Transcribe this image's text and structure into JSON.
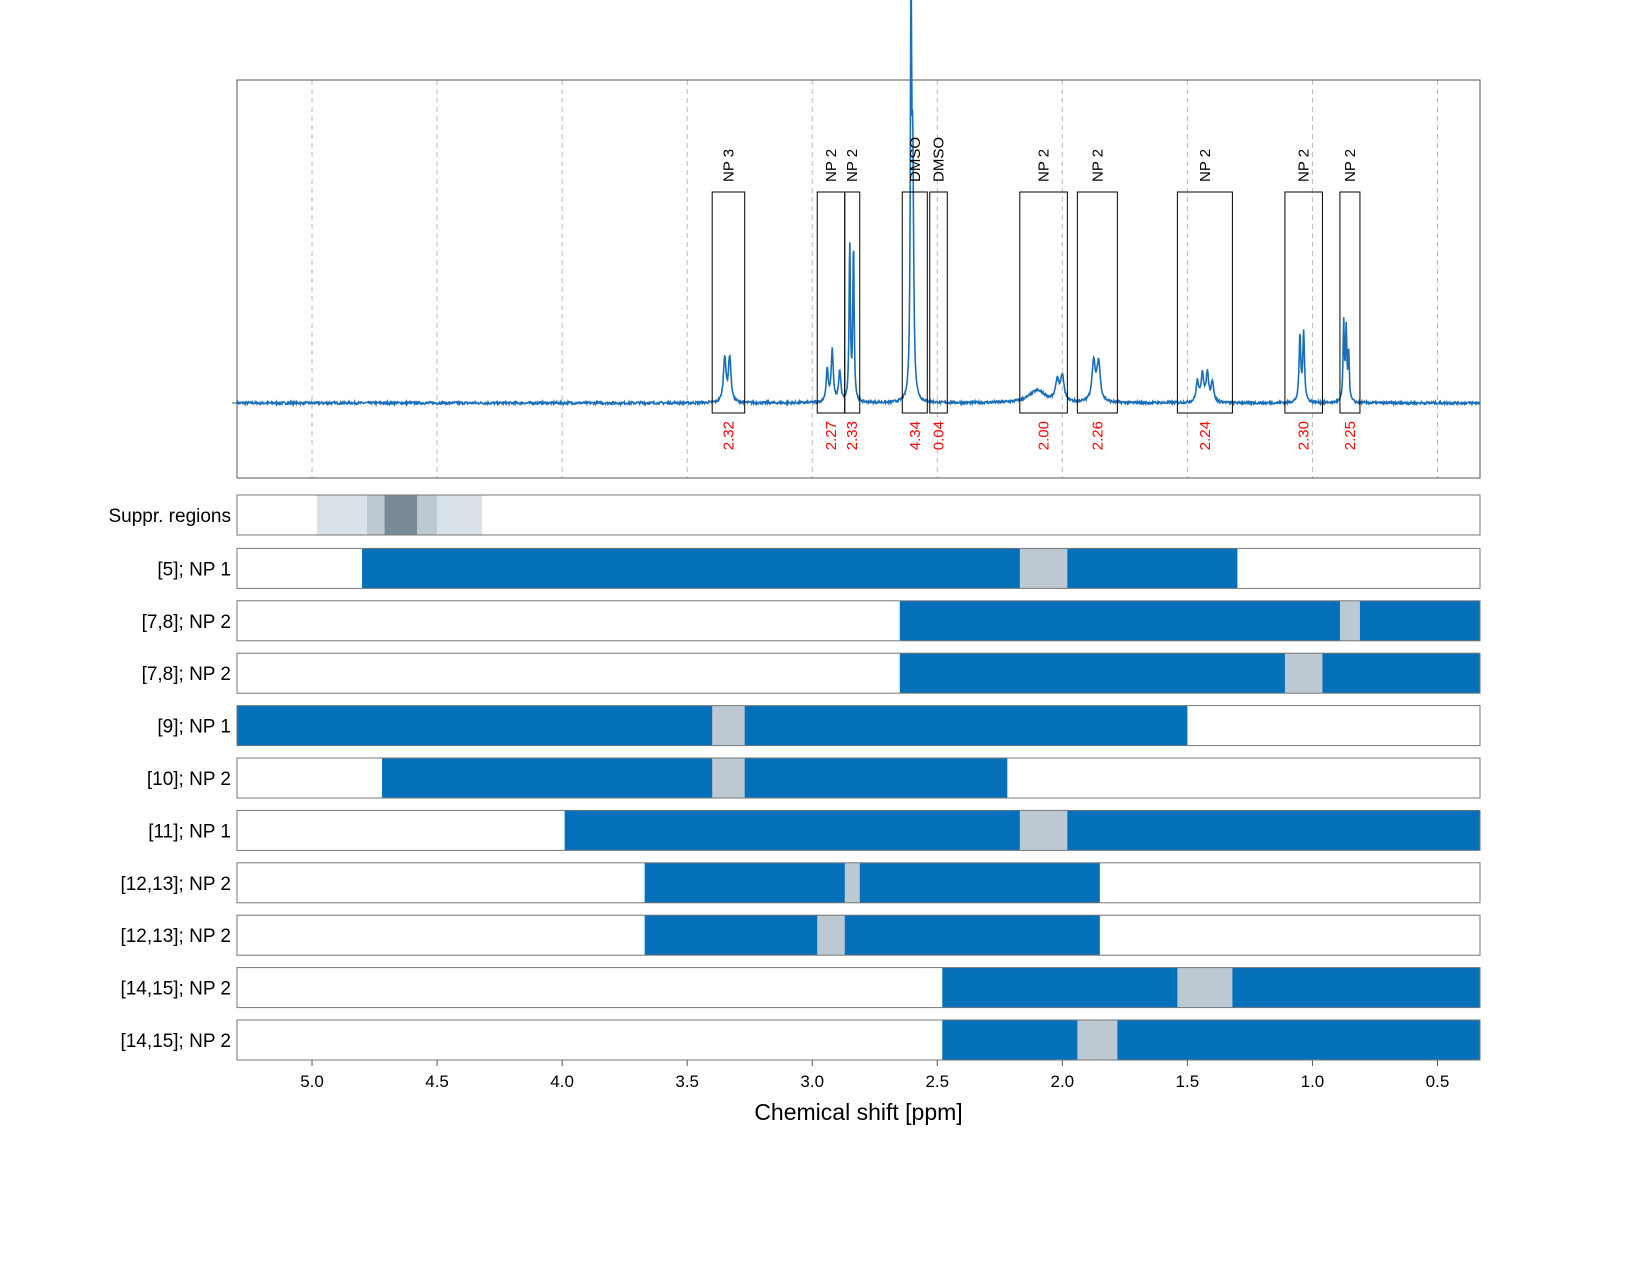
{
  "chart_data": {
    "type": "nmr-spectrum-with-alignment",
    "xlabel": "Chemical shift [ppm]",
    "xlim": [
      5.3,
      0.33
    ],
    "xticks": [
      5.0,
      4.5,
      4.0,
      3.5,
      3.0,
      2.5,
      2.0,
      1.5,
      1.0,
      0.5
    ],
    "xtick_labels": [
      "5.0",
      "4.5",
      "4.0",
      "3.5",
      "3.0",
      "2.5",
      "2.0",
      "1.5",
      "1.0",
      "0.5"
    ],
    "colors": {
      "spectrum": "#1a6fb8",
      "bar": "#0470ba",
      "overlap": "#bcc9d2",
      "integral_text": "#ff0000",
      "grid": "#bbbbbb"
    },
    "spectrum_peaks": [
      {
        "ppm": 3.35,
        "height": 0.11,
        "width": 0.006
      },
      {
        "ppm": 3.33,
        "height": 0.11,
        "width": 0.006
      },
      {
        "ppm": 2.94,
        "height": 0.08,
        "width": 0.005
      },
      {
        "ppm": 2.92,
        "height": 0.125,
        "width": 0.005
      },
      {
        "ppm": 2.89,
        "height": 0.075,
        "width": 0.005
      },
      {
        "ppm": 2.85,
        "height": 0.39,
        "width": 0.003
      },
      {
        "ppm": 2.835,
        "height": 0.39,
        "width": 0.003
      },
      {
        "ppm": 2.605,
        "height": 0.98,
        "width": 0.003
      },
      {
        "ppm": 2.598,
        "height": 0.55,
        "width": 0.004
      },
      {
        "ppm": 2.1,
        "height": 0.03,
        "width": 0.04
      },
      {
        "ppm": 2.02,
        "height": 0.05,
        "width": 0.008
      },
      {
        "ppm": 2.0,
        "height": 0.06,
        "width": 0.008
      },
      {
        "ppm": 1.875,
        "height": 0.095,
        "width": 0.008
      },
      {
        "ppm": 1.855,
        "height": 0.095,
        "width": 0.008
      },
      {
        "ppm": 1.46,
        "height": 0.05,
        "width": 0.006
      },
      {
        "ppm": 1.44,
        "height": 0.07,
        "width": 0.006
      },
      {
        "ppm": 1.42,
        "height": 0.07,
        "width": 0.006
      },
      {
        "ppm": 1.4,
        "height": 0.05,
        "width": 0.006
      },
      {
        "ppm": 1.05,
        "height": 0.16,
        "width": 0.004
      },
      {
        "ppm": 1.035,
        "height": 0.17,
        "width": 0.004
      },
      {
        "ppm": 0.875,
        "height": 0.19,
        "width": 0.003
      },
      {
        "ppm": 0.865,
        "height": 0.17,
        "width": 0.003
      },
      {
        "ppm": 0.855,
        "height": 0.12,
        "width": 0.003
      }
    ],
    "peak_boxes": [
      {
        "label": "NP 3",
        "integral": "2.32",
        "from": 3.4,
        "to": 3.27
      },
      {
        "label": "NP 2",
        "integral": "2.27",
        "from": 2.98,
        "to": 2.87
      },
      {
        "label": "NP 2",
        "integral": "2.33",
        "from": 2.87,
        "to": 2.81
      },
      {
        "label": "DMSO",
        "integral": "4.34",
        "from": 2.64,
        "to": 2.54
      },
      {
        "label": "DMSO",
        "integral": "0.04",
        "from": 2.53,
        "to": 2.46
      },
      {
        "label": "NP 2",
        "integral": "2.00",
        "from": 2.17,
        "to": 1.98
      },
      {
        "label": "NP 2",
        "integral": "2.26",
        "from": 1.94,
        "to": 1.78
      },
      {
        "label": "NP 2",
        "integral": "2.24",
        "from": 1.54,
        "to": 1.32
      },
      {
        "label": "NP 2",
        "integral": "2.30",
        "from": 1.11,
        "to": 0.96
      },
      {
        "label": "NP 2",
        "integral": "2.25",
        "from": 0.89,
        "to": 0.81
      }
    ],
    "suppressed_regions": {
      "label": "Suppr. regions",
      "bands": [
        {
          "from": 4.98,
          "to": 4.32,
          "color": "#d9e2e9"
        },
        {
          "from": 4.78,
          "to": 4.5,
          "color": "#bcc9d2"
        },
        {
          "from": 4.71,
          "to": 4.58,
          "color": "#7a8b98"
        }
      ]
    },
    "rows": [
      {
        "label": "[5]; NP 1",
        "bar": [
          4.8,
          1.3
        ],
        "overlap": [
          2.17,
          1.98
        ]
      },
      {
        "label": "[7,8]; NP 2",
        "bar": [
          2.65,
          0.33
        ],
        "overlap": [
          0.89,
          0.81
        ]
      },
      {
        "label": "[7,8]; NP 2",
        "bar": [
          2.65,
          0.33
        ],
        "overlap": [
          1.11,
          0.96
        ]
      },
      {
        "label": "[9]; NP 1",
        "bar": [
          5.3,
          1.5
        ],
        "overlap": [
          3.4,
          3.27
        ]
      },
      {
        "label": "[10]; NP 2",
        "bar": [
          4.72,
          2.22
        ],
        "overlap": [
          3.4,
          3.27
        ]
      },
      {
        "label": "[11]; NP 1",
        "bar": [
          3.99,
          0.33
        ],
        "overlap": [
          2.17,
          1.98
        ]
      },
      {
        "label": "[12,13]; NP 2",
        "bar": [
          3.67,
          1.85
        ],
        "overlap": [
          2.87,
          2.81
        ]
      },
      {
        "label": "[12,13]; NP 2",
        "bar": [
          3.67,
          1.85
        ],
        "overlap": [
          2.98,
          2.87
        ]
      },
      {
        "label": "[14,15]; NP 2",
        "bar": [
          2.48,
          0.33
        ],
        "overlap": [
          1.54,
          1.32
        ]
      },
      {
        "label": "[14,15]; NP 2",
        "bar": [
          2.48,
          0.33
        ],
        "overlap": [
          1.94,
          1.78
        ]
      }
    ]
  }
}
